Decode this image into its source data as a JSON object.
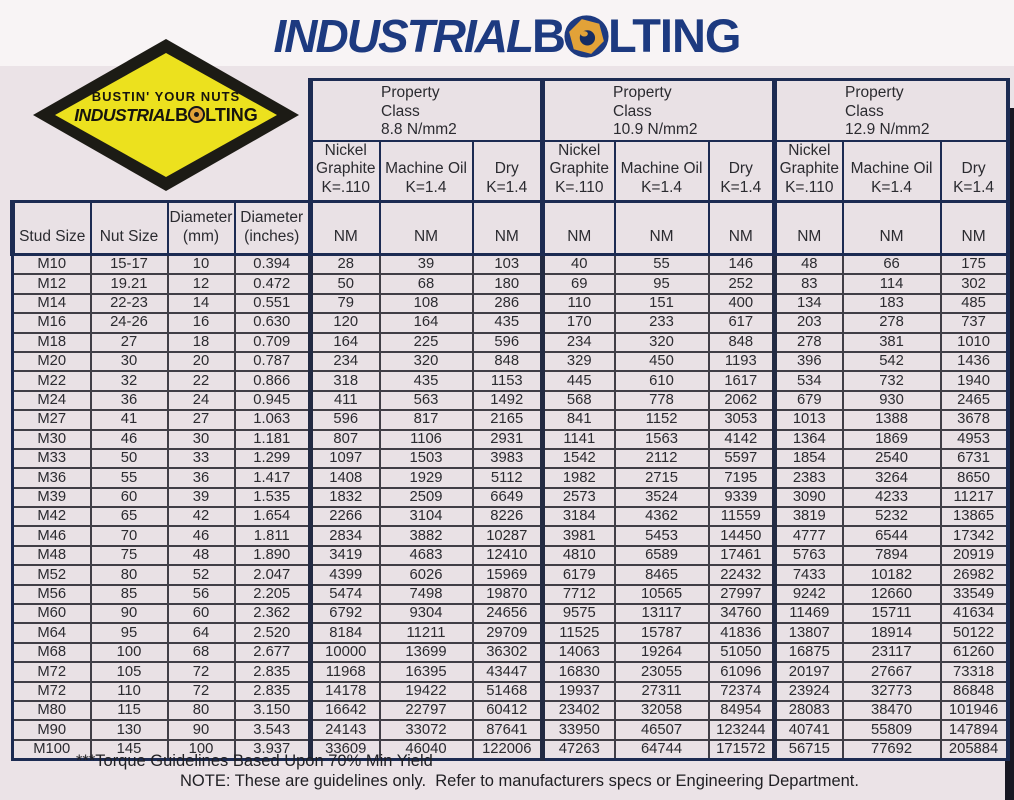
{
  "brand": {
    "word1": "INDUSTRIAL",
    "word2_initial": "B",
    "word2_rest": "LTING"
  },
  "badge": {
    "tagline": "BUSTIN' YOUR NUTS",
    "brand1": "INDUSTRIAL",
    "brand2": "B",
    "brand3": "LTING"
  },
  "colors": {
    "navy": "#1d3a80",
    "orange": "#e2a238",
    "badge_yellow": "#ece11e",
    "paper": "#ebe3e7"
  },
  "table": {
    "unit_label": "NM",
    "left_columns": [
      {
        "lines": [
          "Stud Size"
        ]
      },
      {
        "lines": [
          "Nut Size"
        ]
      },
      {
        "lines": [
          "Diameter",
          "(mm)"
        ]
      },
      {
        "lines": [
          "Diameter",
          "(inches)"
        ]
      }
    ],
    "groups": [
      {
        "title_lines": [
          "Property",
          "Class",
          "8.8 N/mm2"
        ],
        "sub": [
          {
            "lines": [
              "Nickel",
              "Graphite",
              "K=.110"
            ]
          },
          {
            "lines": [
              "Machine Oil",
              "K=1.4"
            ]
          },
          {
            "lines": [
              "Dry",
              "K=1.4"
            ]
          }
        ]
      },
      {
        "title_lines": [
          "Property",
          "Class",
          "10.9 N/mm2"
        ],
        "sub": [
          {
            "lines": [
              "Nickel",
              "Graphite",
              "K=.110"
            ]
          },
          {
            "lines": [
              "Machine Oil",
              "K=1.4"
            ]
          },
          {
            "lines": [
              "Dry",
              "K=1.4"
            ]
          }
        ]
      },
      {
        "title_lines": [
          "Property",
          "Class",
          "12.9 N/mm2"
        ],
        "sub": [
          {
            "lines": [
              "Nickel",
              "Graphite",
              "K=.110"
            ]
          },
          {
            "lines": [
              "Machine Oil",
              "K=1.4"
            ]
          },
          {
            "lines": [
              "Dry",
              "K=1.4"
            ]
          }
        ]
      }
    ],
    "rows": [
      [
        "M10",
        "15-17",
        "10",
        "0.394",
        "28",
        "39",
        "103",
        "40",
        "55",
        "146",
        "48",
        "66",
        "175"
      ],
      [
        "M12",
        "19.21",
        "12",
        "0.472",
        "50",
        "68",
        "180",
        "69",
        "95",
        "252",
        "83",
        "114",
        "302"
      ],
      [
        "M14",
        "22-23",
        "14",
        "0.551",
        "79",
        "108",
        "286",
        "110",
        "151",
        "400",
        "134",
        "183",
        "485"
      ],
      [
        "M16",
        "24-26",
        "16",
        "0.630",
        "120",
        "164",
        "435",
        "170",
        "233",
        "617",
        "203",
        "278",
        "737"
      ],
      [
        "M18",
        "27",
        "18",
        "0.709",
        "164",
        "225",
        "596",
        "234",
        "320",
        "848",
        "278",
        "381",
        "1010"
      ],
      [
        "M20",
        "30",
        "20",
        "0.787",
        "234",
        "320",
        "848",
        "329",
        "450",
        "1193",
        "396",
        "542",
        "1436"
      ],
      [
        "M22",
        "32",
        "22",
        "0.866",
        "318",
        "435",
        "1153",
        "445",
        "610",
        "1617",
        "534",
        "732",
        "1940"
      ],
      [
        "M24",
        "36",
        "24",
        "0.945",
        "411",
        "563",
        "1492",
        "568",
        "778",
        "2062",
        "679",
        "930",
        "2465"
      ],
      [
        "M27",
        "41",
        "27",
        "1.063",
        "596",
        "817",
        "2165",
        "841",
        "1152",
        "3053",
        "1013",
        "1388",
        "3678"
      ],
      [
        "M30",
        "46",
        "30",
        "1.181",
        "807",
        "1106",
        "2931",
        "1141",
        "1563",
        "4142",
        "1364",
        "1869",
        "4953"
      ],
      [
        "M33",
        "50",
        "33",
        "1.299",
        "1097",
        "1503",
        "3983",
        "1542",
        "2112",
        "5597",
        "1854",
        "2540",
        "6731"
      ],
      [
        "M36",
        "55",
        "36",
        "1.417",
        "1408",
        "1929",
        "5112",
        "1982",
        "2715",
        "7195",
        "2383",
        "3264",
        "8650"
      ],
      [
        "M39",
        "60",
        "39",
        "1.535",
        "1832",
        "2509",
        "6649",
        "2573",
        "3524",
        "9339",
        "3090",
        "4233",
        "11217"
      ],
      [
        "M42",
        "65",
        "42",
        "1.654",
        "2266",
        "3104",
        "8226",
        "3184",
        "4362",
        "11559",
        "3819",
        "5232",
        "13865"
      ],
      [
        "M46",
        "70",
        "46",
        "1.811",
        "2834",
        "3882",
        "10287",
        "3981",
        "5453",
        "14450",
        "4777",
        "6544",
        "17342"
      ],
      [
        "M48",
        "75",
        "48",
        "1.890",
        "3419",
        "4683",
        "12410",
        "4810",
        "6589",
        "17461",
        "5763",
        "7894",
        "20919"
      ],
      [
        "M52",
        "80",
        "52",
        "2.047",
        "4399",
        "6026",
        "15969",
        "6179",
        "8465",
        "22432",
        "7433",
        "10182",
        "26982"
      ],
      [
        "M56",
        "85",
        "56",
        "2.205",
        "5474",
        "7498",
        "19870",
        "7712",
        "10565",
        "27997",
        "9242",
        "12660",
        "33549"
      ],
      [
        "M60",
        "90",
        "60",
        "2.362",
        "6792",
        "9304",
        "24656",
        "9575",
        "13117",
        "34760",
        "11469",
        "15711",
        "41634"
      ],
      [
        "M64",
        "95",
        "64",
        "2.520",
        "8184",
        "11211",
        "29709",
        "11525",
        "15787",
        "41836",
        "13807",
        "18914",
        "50122"
      ],
      [
        "M68",
        "100",
        "68",
        "2.677",
        "10000",
        "13699",
        "36302",
        "14063",
        "19264",
        "51050",
        "16875",
        "23117",
        "61260"
      ],
      [
        "M72",
        "105",
        "72",
        "2.835",
        "11968",
        "16395",
        "43447",
        "16830",
        "23055",
        "61096",
        "20197",
        "27667",
        "73318"
      ],
      [
        "M72",
        "110",
        "72",
        "2.835",
        "14178",
        "19422",
        "51468",
        "19937",
        "27311",
        "72374",
        "23924",
        "32773",
        "86848"
      ],
      [
        "M80",
        "115",
        "80",
        "3.150",
        "16642",
        "22797",
        "60412",
        "23402",
        "32058",
        "84954",
        "28083",
        "38470",
        "101946"
      ],
      [
        "M90",
        "130",
        "90",
        "3.543",
        "24143",
        "33072",
        "87641",
        "33950",
        "46507",
        "123244",
        "40741",
        "55809",
        "147894"
      ],
      [
        "M100",
        "145",
        "100",
        "3.937",
        "33609",
        "46040",
        "122006",
        "47263",
        "64744",
        "171572",
        "56715",
        "77692",
        "205884"
      ]
    ]
  },
  "footnotes": {
    "line1": "***Torque Guidelines Based Upon 70% Min Yield",
    "line2": "NOTE: These are guidelines only.  Refer to manufacturers specs or Engineering Department."
  }
}
